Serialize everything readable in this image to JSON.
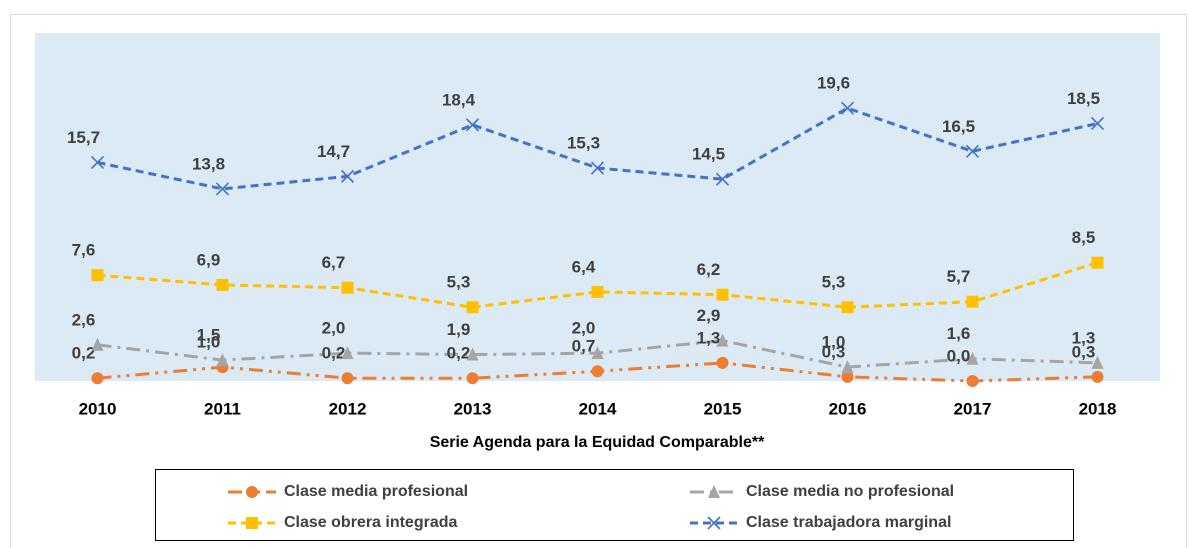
{
  "chart_data": {
    "type": "line",
    "x_label": "Serie Agenda para la Equidad Comparable**",
    "categories": [
      "2010",
      "2011",
      "2012",
      "2013",
      "2014",
      "2015",
      "2016",
      "2017",
      "2018"
    ],
    "ylim": [
      0,
      25
    ],
    "series": [
      {
        "name": "Clase media profesional",
        "color": "#ED7D31",
        "marker": "circle",
        "values": [
          0.2,
          1.0,
          0.2,
          0.2,
          0.7,
          1.3,
          0.3,
          0.0,
          0.3
        ],
        "value_labels": [
          "0,2",
          "1,0",
          "0,2",
          "0,2",
          "0,7",
          "1,3",
          "0,3",
          "0,0",
          "0,3"
        ]
      },
      {
        "name": "Clase media no profesional",
        "color": "#A5A5A5",
        "marker": "triangle",
        "values": [
          2.6,
          1.5,
          2.0,
          1.9,
          2.0,
          2.9,
          1.0,
          1.6,
          1.3
        ],
        "value_labels": [
          "2,6",
          "1,5",
          "2,0",
          "1,9",
          "2,0",
          "2,9",
          "1,0",
          "1,6",
          "1,3"
        ]
      },
      {
        "name": "Clase obrera integrada",
        "color": "#FFC000",
        "marker": "square",
        "values": [
          7.6,
          6.9,
          6.7,
          5.3,
          6.4,
          6.2,
          5.3,
          5.7,
          8.5
        ],
        "value_labels": [
          "7,6",
          "6,9",
          "6,7",
          "5,3",
          "6,4",
          "6,2",
          "5,3",
          "5,7",
          "8,5"
        ]
      },
      {
        "name": "Clase trabajadora marginal",
        "color": "#4472C4",
        "marker": "x",
        "values": [
          15.7,
          13.8,
          14.7,
          18.4,
          15.3,
          14.5,
          19.6,
          16.5,
          18.5
        ],
        "value_labels": [
          "15,7",
          "13,8",
          "14,7",
          "18,4",
          "15,3",
          "14,5",
          "19,6",
          "16,5",
          "18,5"
        ]
      }
    ]
  }
}
